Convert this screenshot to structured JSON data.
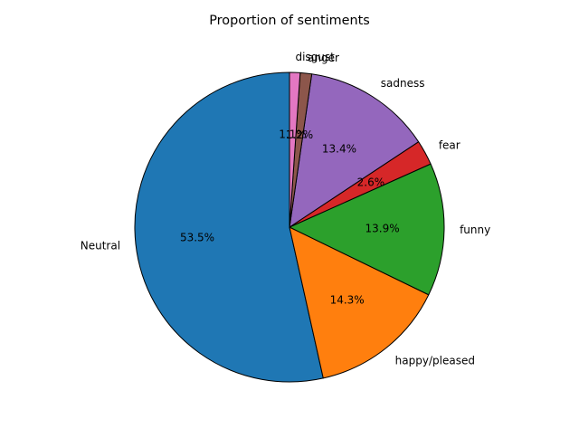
{
  "chart_data": {
    "type": "pie",
    "title": "Proportion of sentiments",
    "slices": [
      {
        "label": "Neutral",
        "value": 53.5,
        "pct_label": "53.5%",
        "color": "#1f77b4"
      },
      {
        "label": "happy/pleased",
        "value": 14.3,
        "pct_label": "14.3%",
        "color": "#ff7f0e"
      },
      {
        "label": "funny",
        "value": 13.9,
        "pct_label": "13.9%",
        "color": "#2ca02c"
      },
      {
        "label": "fear",
        "value": 2.6,
        "pct_label": "2.6%",
        "color": "#d62728"
      },
      {
        "label": "sadness",
        "value": 13.4,
        "pct_label": "13.4%",
        "color": "#9467bd"
      },
      {
        "label": "anger",
        "value": 1.2,
        "pct_label": "1.2%",
        "color": "#8c564b"
      },
      {
        "label": "disgust",
        "value": 1.1,
        "pct_label": "1.1%",
        "color": "#e377c2"
      }
    ],
    "start_angle_deg": 90,
    "direction": "counterclockwise",
    "edge_color": "#000000"
  }
}
